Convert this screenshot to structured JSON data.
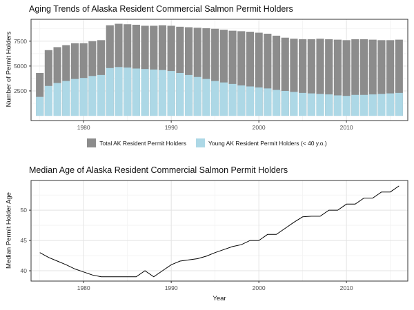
{
  "page": {
    "background": "#ffffff"
  },
  "chart_data": [
    {
      "type": "bar",
      "title": "Aging Trends of Alaska Resident Commercial Salmon Permit Holders",
      "ylabel": "Number of Permit Holders",
      "xlabel": "",
      "legend_position": "bottom",
      "grid": true,
      "years": [
        1975,
        1976,
        1977,
        1978,
        1979,
        1980,
        1981,
        1982,
        1983,
        1984,
        1985,
        1986,
        1987,
        1988,
        1989,
        1990,
        1991,
        1992,
        1993,
        1994,
        1995,
        1996,
        1997,
        1998,
        1999,
        2000,
        2001,
        2002,
        2003,
        2004,
        2005,
        2006,
        2007,
        2008,
        2009,
        2010,
        2011,
        2012,
        2013,
        2014,
        2015,
        2016
      ],
      "series": [
        {
          "name": "Total AK Resident Permit Holders",
          "color": "#8c8c8c",
          "values": [
            4300,
            6600,
            6900,
            7100,
            7300,
            7300,
            7500,
            7600,
            9100,
            9250,
            9200,
            9150,
            9050,
            9050,
            9100,
            9050,
            8950,
            8900,
            8850,
            8800,
            8750,
            8650,
            8550,
            8500,
            8450,
            8350,
            8250,
            8050,
            7850,
            7750,
            7700,
            7700,
            7750,
            7700,
            7650,
            7600,
            7700,
            7700,
            7650,
            7600,
            7600,
            7650
          ]
        },
        {
          "name": "Young AK Resident Permit Holders (< 40 y.o.)",
          "color": "#add8e6",
          "values": [
            1900,
            3000,
            3300,
            3500,
            3700,
            3800,
            4000,
            4100,
            4800,
            4900,
            4850,
            4750,
            4700,
            4650,
            4600,
            4500,
            4300,
            4100,
            3900,
            3700,
            3500,
            3350,
            3200,
            3050,
            2950,
            2850,
            2750,
            2600,
            2500,
            2400,
            2300,
            2250,
            2200,
            2150,
            2050,
            2000,
            2100,
            2100,
            2150,
            2200,
            2250,
            2300
          ]
        }
      ],
      "xlim": [
        1974,
        2017
      ],
      "ylim": [
        -480,
        9700
      ],
      "yticks": [
        2500,
        5000,
        7500
      ],
      "xticks": [
        1980,
        1990,
        2000,
        2010
      ],
      "minor_y": [
        1250,
        3750,
        6250,
        8750
      ],
      "minor_x": [
        1975,
        1985,
        1995,
        2005,
        2015
      ]
    },
    {
      "type": "line",
      "title": "Median Age of Alaska Resident Commercial Salmon Permit Holders",
      "ylabel": "Median Permit Holder Age",
      "xlabel": "Year",
      "line_color": "#000000",
      "grid": true,
      "x": [
        1975,
        1976,
        1977,
        1978,
        1979,
        1980,
        1981,
        1982,
        1983,
        1984,
        1985,
        1986,
        1987,
        1988,
        1989,
        1990,
        1991,
        1992,
        1993,
        1994,
        1995,
        1996,
        1997,
        1998,
        1999,
        2000,
        2001,
        2002,
        2003,
        2004,
        2005,
        2006,
        2007,
        2008,
        2009,
        2010,
        2011,
        2012,
        2013,
        2014,
        2015,
        2016
      ],
      "y": [
        43,
        42.2,
        41.6,
        41,
        40.3,
        39.8,
        39.3,
        39,
        39,
        39,
        39,
        39,
        40,
        39,
        40,
        41,
        41.6,
        41.8,
        42,
        42.4,
        43,
        43.5,
        44,
        44.3,
        45,
        45,
        46,
        46,
        47,
        48,
        48.9,
        49,
        49,
        50,
        50,
        51,
        51,
        52,
        52,
        53,
        53,
        54
      ],
      "xlim": [
        1974,
        2017
      ],
      "ylim": [
        38.3,
        54.9
      ],
      "yticks": [
        40,
        45,
        50
      ],
      "xticks": [
        1980,
        1990,
        2000,
        2010
      ],
      "minor_y": [
        42.5,
        47.5,
        52.5
      ],
      "minor_x": [
        1975,
        1985,
        1995,
        2005,
        2015
      ]
    }
  ]
}
